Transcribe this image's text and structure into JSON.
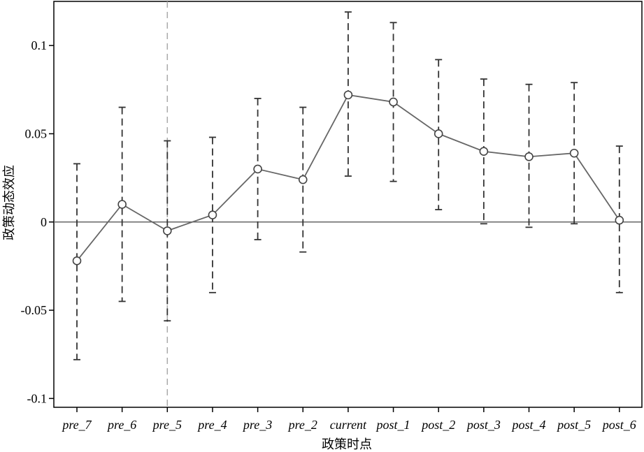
{
  "chart_data": {
    "type": "line",
    "title": "",
    "xlabel": "政策时点",
    "ylabel": "政策动态效应",
    "categories": [
      "pre_7",
      "pre_6",
      "pre_5",
      "pre_4",
      "pre_3",
      "pre_2",
      "current",
      "post_1",
      "post_2",
      "post_3",
      "post_4",
      "post_5",
      "post_6"
    ],
    "series": [
      {
        "values": [
          -0.022,
          0.01,
          -0.005,
          0.004,
          0.03,
          0.024,
          0.072,
          0.068,
          0.05,
          0.04,
          0.037,
          0.039,
          0.001
        ],
        "ci_lower": [
          -0.078,
          -0.045,
          -0.056,
          -0.04,
          -0.01,
          -0.017,
          0.026,
          0.023,
          0.007,
          -0.001,
          -0.003,
          -0.001,
          -0.04
        ],
        "ci_upper": [
          0.033,
          0.065,
          0.046,
          0.048,
          0.07,
          0.065,
          0.119,
          0.113,
          0.092,
          0.081,
          0.078,
          0.079,
          0.043
        ]
      }
    ],
    "ylim": [
      -0.105,
      0.125
    ],
    "yticks": [
      -0.1,
      -0.05,
      0,
      0.05,
      0.1
    ],
    "ytick_labels": [
      "-0.1",
      "-0.05",
      "0",
      "0.05",
      "0.1"
    ],
    "reference_hline": 0,
    "reference_vline_category": "pre_5",
    "line_color": "#666666",
    "ci_color": "#333333",
    "reference_vline_color": "#aaaaaa",
    "grid": false,
    "legend": "none"
  }
}
